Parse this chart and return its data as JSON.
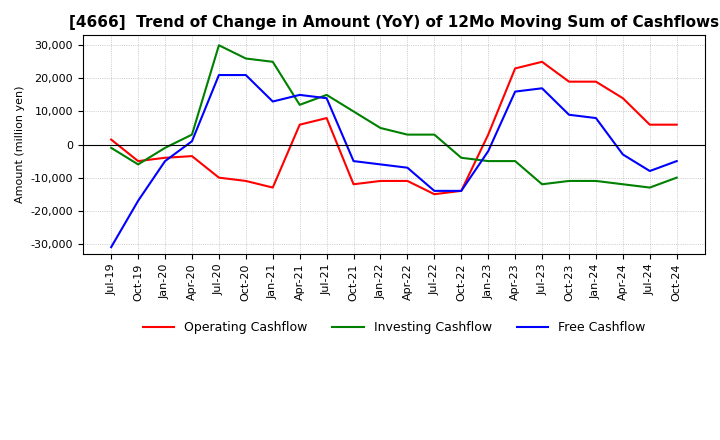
{
  "title": "[4666]  Trend of Change in Amount (YoY) of 12Mo Moving Sum of Cashflows",
  "ylabel": "Amount (million yen)",
  "ylim": [
    -33000,
    33000
  ],
  "yticks": [
    -30000,
    -20000,
    -10000,
    0,
    10000,
    20000,
    30000
  ],
  "x_labels": [
    "Jul-19",
    "Oct-19",
    "Jan-20",
    "Apr-20",
    "Jul-20",
    "Oct-20",
    "Jan-21",
    "Apr-21",
    "Jul-21",
    "Oct-21",
    "Jan-22",
    "Apr-22",
    "Jul-22",
    "Oct-22",
    "Jan-23",
    "Apr-23",
    "Jul-23",
    "Oct-23",
    "Jan-24",
    "Apr-24",
    "Jul-24",
    "Oct-24"
  ],
  "operating": [
    1500,
    -5000,
    -4000,
    -3500,
    -10000,
    -11000,
    -13000,
    6000,
    8000,
    -12000,
    -11000,
    -11000,
    -15000,
    -14000,
    3000,
    23000,
    25000,
    19000,
    19000,
    14000,
    6000,
    6000
  ],
  "investing": [
    -1000,
    -6000,
    -1000,
    3000,
    30000,
    26000,
    25000,
    12000,
    15000,
    10000,
    5000,
    3000,
    3000,
    -4000,
    -5000,
    -5000,
    -12000,
    -11000,
    -11000,
    -12000,
    -13000,
    -10000
  ],
  "free": [
    -31000,
    -17000,
    -5000,
    1000,
    21000,
    21000,
    13000,
    15000,
    14000,
    -5000,
    -6000,
    -7000,
    -14000,
    -14000,
    -2000,
    16000,
    17000,
    9000,
    8000,
    -3000,
    -8000,
    -5000
  ],
  "operating_color": "#ff0000",
  "investing_color": "#008000",
  "free_color": "#0000ff",
  "background_color": "#ffffff",
  "grid_color": "#aaaaaa",
  "title_fontsize": 11,
  "tick_fontsize": 8,
  "legend_fontsize": 9
}
